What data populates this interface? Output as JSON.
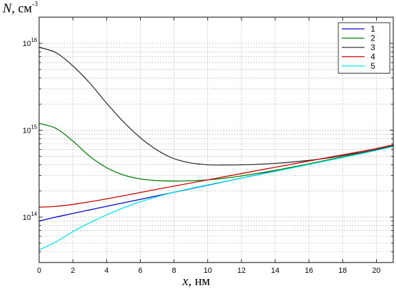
{
  "chart_data": {
    "type": "line",
    "xlabel_var": "x",
    "xlabel_unit": ", нм",
    "ylabel_var": "N",
    "ylabel_unit": ", см",
    "ylabel_exp": "-3",
    "xlim": [
      0,
      21
    ],
    "ylim": [
      30000000000000,
      20000000000000000
    ],
    "yscale": "log",
    "grid": true,
    "legend_position": "top-right",
    "x_ticks": [
      "0",
      "2",
      "4",
      "6",
      "8",
      "10",
      "12",
      "14",
      "16",
      "18",
      "20"
    ],
    "y_ticks": [
      {
        "base": "10",
        "exp": "14",
        "value": 100000000000000
      },
      {
        "base": "10",
        "exp": "15",
        "value": 1000000000000000
      },
      {
        "base": "10",
        "exp": "16",
        "value": 10000000000000000
      }
    ],
    "x": [
      0,
      1,
      2,
      3,
      4,
      5,
      6,
      7,
      8,
      9,
      10,
      11,
      12,
      13,
      14,
      15,
      16,
      17,
      18,
      19,
      20,
      21
    ],
    "series": [
      {
        "name": "1",
        "color": "#0000cc",
        "values": [
          90000000000000.0,
          100000000000000.0,
          110000000000000.0,
          121000000000000.0,
          133000000000000.0,
          146000000000000.0,
          160000000000000.0,
          176000000000000.0,
          193000000000000.0,
          212000000000000.0,
          233000000000000.0,
          256000000000000.0,
          281000000000000.0,
          309000000000000.0,
          339000000000000.0,
          372000000000000.0,
          408000000000000.0,
          448000000000000.0,
          492000000000000.0,
          540000000000000.0,
          593000000000000.0,
          650000000000000.0
        ]
      },
      {
        "name": "2",
        "color": "#008000",
        "values": [
          1200000000000000.0,
          1050000000000000.0,
          750000000000000.0,
          500000000000000.0,
          370000000000000.0,
          305000000000000.0,
          275000000000000.0,
          263000000000000.0,
          260000000000000.0,
          262000000000000.0,
          268000000000000.0,
          280000000000000.0,
          298000000000000.0,
          320000000000000.0,
          345000000000000.0,
          376000000000000.0,
          410000000000000.0,
          450000000000000.0,
          494000000000000.0,
          543000000000000.0,
          597000000000000.0,
          660000000000000.0
        ]
      },
      {
        "name": "3",
        "color": "#333333",
        "values": [
          9000000000000000.0,
          7800000000000000.0,
          5500000000000000.0,
          3500000000000000.0,
          2050000000000000.0,
          1250000000000000.0,
          820000000000000.0,
          590000000000000.0,
          470000000000000.0,
          420000000000000.0,
          400000000000000.0,
          398000000000000.0,
          400000000000000.0,
          405000000000000.0,
          415000000000000.0,
          430000000000000.0,
          450000000000000.0,
          475000000000000.0,
          510000000000000.0,
          550000000000000.0,
          600000000000000.0,
          670000000000000.0
        ]
      },
      {
        "name": "4",
        "color": "#cc0000",
        "values": [
          130000000000000.0,
          133000000000000.0,
          140000000000000.0,
          150000000000000.0,
          162000000000000.0,
          176000000000000.0,
          192000000000000.0,
          209000000000000.0,
          227000000000000.0,
          247000000000000.0,
          268000000000000.0,
          292000000000000.0,
          317000000000000.0,
          345000000000000.0,
          375000000000000.0,
          407000000000000.0,
          442000000000000.0,
          480000000000000.0,
          521000000000000.0,
          566000000000000.0,
          615000000000000.0,
          680000000000000.0
        ]
      },
      {
        "name": "5",
        "color": "#00e5ee",
        "values": [
          42000000000000.0,
          52000000000000.0,
          68000000000000.0,
          86000000000000.0,
          106000000000000.0,
          128000000000000.0,
          150000000000000.0,
          172000000000000.0,
          193000000000000.0,
          214000000000000.0,
          235000000000000.0,
          257000000000000.0,
          281000000000000.0,
          307000000000000.0,
          336000000000000.0,
          368000000000000.0,
          403000000000000.0,
          442000000000000.0,
          485000000000000.0,
          532000000000000.0,
          585000000000000.0,
          650000000000000.0
        ]
      }
    ]
  }
}
